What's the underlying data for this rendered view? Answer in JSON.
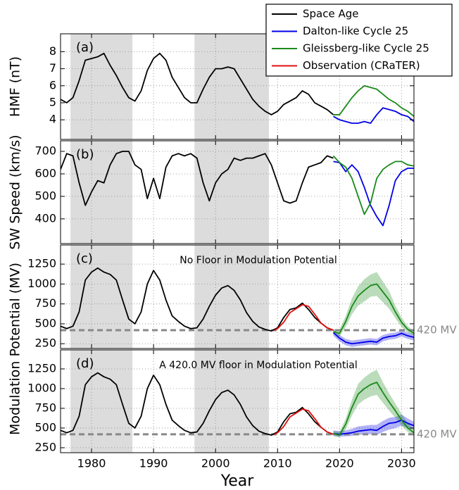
{
  "chart_data": [
    {
      "type": "line",
      "panel_label": "(a)",
      "ylabel": "HMF (nT)",
      "xlim": [
        1975,
        2032
      ],
      "xticks": [
        1980,
        1990,
        2000,
        2010,
        2020,
        2030
      ],
      "ylim": [
        2.85,
        9.05
      ],
      "yticks": [
        4,
        5,
        6,
        7,
        8
      ],
      "grid": true,
      "shaded": [
        [
          1976.6,
          1986.6
        ],
        [
          1996.6,
          2008.6
        ]
      ],
      "series": [
        {
          "name": "Space Age",
          "color": "#000000",
          "x": [
            1975,
            1976,
            1977,
            1978,
            1979,
            1980,
            1981,
            1982,
            1983,
            1984,
            1985,
            1986,
            1987,
            1988,
            1989,
            1990,
            1991,
            1992,
            1993,
            1994,
            1995,
            1996,
            1997,
            1998,
            1999,
            2000,
            2001,
            2002,
            2003,
            2004,
            2005,
            2006,
            2007,
            2008,
            2009,
            2010,
            2011,
            2012,
            2013,
            2014,
            2015,
            2016,
            2017,
            2018,
            2019
          ],
          "values": [
            5.2,
            5.0,
            5.3,
            6.3,
            7.5,
            7.6,
            7.7,
            7.9,
            7.2,
            6.6,
            5.9,
            5.3,
            5.1,
            5.7,
            6.9,
            7.6,
            7.9,
            7.5,
            6.5,
            5.9,
            5.3,
            5.0,
            5.0,
            5.8,
            6.5,
            7.0,
            7.0,
            7.1,
            7.0,
            6.4,
            5.8,
            5.2,
            4.8,
            4.5,
            4.3,
            4.5,
            4.9,
            5.1,
            5.3,
            5.7,
            5.5,
            5.0,
            4.8,
            4.6,
            4.3
          ]
        },
        {
          "name": "Dalton-like Cycle 25",
          "color": "#0000e6",
          "x": [
            2019,
            2020,
            2021,
            2022,
            2023,
            2024,
            2025,
            2026,
            2027,
            2028,
            2029,
            2030,
            2031,
            2032
          ],
          "values": [
            4.2,
            4.0,
            3.9,
            3.8,
            3.8,
            3.9,
            3.8,
            4.3,
            4.7,
            4.6,
            4.5,
            4.3,
            4.2,
            3.9
          ]
        },
        {
          "name": "Gleissberg-like Cycle 25",
          "color": "#1a8a1a",
          "x": [
            2019,
            2020,
            2021,
            2022,
            2023,
            2024,
            2025,
            2026,
            2027,
            2028,
            2029,
            2030,
            2031,
            2032
          ],
          "values": [
            4.3,
            4.3,
            4.8,
            5.3,
            5.7,
            6.0,
            5.9,
            5.8,
            5.5,
            5.2,
            5.0,
            4.7,
            4.5,
            4.2
          ]
        }
      ]
    },
    {
      "type": "line",
      "panel_label": "(b)",
      "ylabel": "SW Speed (km/s)",
      "xlim": [
        1975,
        2032
      ],
      "xticks": [
        1980,
        1990,
        2000,
        2010,
        2020,
        2030
      ],
      "ylim": [
        290,
        747
      ],
      "yticks": [
        400,
        500,
        600,
        700
      ],
      "grid": true,
      "shaded": [
        [
          1976.6,
          1986.6
        ],
        [
          1996.6,
          2008.6
        ]
      ],
      "series": [
        {
          "name": "Space Age",
          "color": "#000000",
          "x": [
            1975,
            1976,
            1977,
            1978,
            1979,
            1980,
            1981,
            1982,
            1983,
            1984,
            1985,
            1986,
            1987,
            1988,
            1989,
            1990,
            1991,
            1992,
            1993,
            1994,
            1995,
            1996,
            1997,
            1998,
            1999,
            2000,
            2001,
            2002,
            2003,
            2004,
            2005,
            2006,
            2007,
            2008,
            2009,
            2010,
            2011,
            2012,
            2013,
            2014,
            2015,
            2016,
            2017,
            2018,
            2019
          ],
          "values": [
            620,
            690,
            680,
            560,
            460,
            520,
            570,
            560,
            640,
            690,
            700,
            700,
            640,
            620,
            490,
            580,
            490,
            630,
            680,
            690,
            680,
            690,
            670,
            560,
            480,
            560,
            600,
            620,
            670,
            660,
            670,
            670,
            680,
            690,
            640,
            560,
            480,
            470,
            480,
            560,
            630,
            640,
            650,
            680,
            670
          ]
        },
        {
          "name": "Dalton-like Cycle 25",
          "color": "#0000e6",
          "x": [
            2019,
            2020,
            2021,
            2022,
            2023,
            2024,
            2025,
            2026,
            2027,
            2028,
            2029,
            2030,
            2031,
            2032
          ],
          "values": [
            655,
            650,
            610,
            640,
            610,
            540,
            460,
            410,
            370,
            460,
            570,
            610,
            625,
            625
          ]
        },
        {
          "name": "Gleissberg-like Cycle 25",
          "color": "#1a8a1a",
          "x": [
            2019,
            2020,
            2021,
            2022,
            2023,
            2024,
            2025,
            2026,
            2027,
            2028,
            2029,
            2030,
            2031,
            2032
          ],
          "values": [
            680,
            650,
            630,
            580,
            500,
            420,
            470,
            580,
            620,
            640,
            655,
            655,
            640,
            635
          ]
        }
      ]
    },
    {
      "type": "line",
      "panel_label": "(c)",
      "note": "No Floor in Modulation Potential",
      "ylabel": "Modulation Potential (MV)",
      "xlim": [
        1975,
        2032
      ],
      "xticks": [
        1980,
        1990,
        2000,
        2010,
        2020,
        2030
      ],
      "ylim": [
        190,
        1490
      ],
      "yticks": [
        250,
        500,
        750,
        1000,
        1250
      ],
      "grid": true,
      "shaded": [
        [
          1976.6,
          1986.6
        ],
        [
          1996.6,
          2008.6
        ]
      ],
      "hline": {
        "value": 420,
        "label": "420 MV",
        "color": "#888888"
      },
      "series": [
        {
          "name": "Space Age",
          "color": "#000000",
          "x": [
            1975,
            1976,
            1977,
            1978,
            1979,
            1980,
            1981,
            1982,
            1983,
            1984,
            1985,
            1986,
            1987,
            1988,
            1989,
            1990,
            1991,
            1992,
            1993,
            1994,
            1995,
            1996,
            1997,
            1998,
            1999,
            2000,
            2001,
            2002,
            2003,
            2004,
            2005,
            2006,
            2007,
            2008,
            2009,
            2010,
            2011,
            2012,
            2013,
            2014,
            2015,
            2016,
            2017,
            2018,
            2019
          ],
          "values": [
            470,
            440,
            470,
            650,
            1050,
            1150,
            1200,
            1150,
            1120,
            1050,
            800,
            560,
            500,
            650,
            1000,
            1170,
            1050,
            800,
            600,
            530,
            470,
            440,
            450,
            560,
            720,
            860,
            950,
            980,
            920,
            800,
            640,
            530,
            460,
            430,
            410,
            450,
            580,
            680,
            700,
            760,
            680,
            580,
            510,
            450,
            420
          ]
        },
        {
          "name": "Observation (CRaTER)",
          "color": "#e01010",
          "x": [
            2009.5,
            2010,
            2011,
            2012,
            2013,
            2014,
            2015,
            2016,
            2017,
            2018,
            2019
          ],
          "values": [
            420,
            440,
            520,
            640,
            690,
            740,
            720,
            620,
            510,
            450,
            420
          ]
        },
        {
          "name": "Dalton-like Cycle 25",
          "color": "#0000e6",
          "x": [
            2019,
            2020,
            2021,
            2022,
            2023,
            2024,
            2025,
            2026,
            2027,
            2028,
            2029,
            2030,
            2031,
            2032
          ],
          "values": [
            390,
            320,
            270,
            250,
            260,
            270,
            280,
            270,
            320,
            340,
            350,
            380,
            350,
            330
          ],
          "lower": [
            350,
            280,
            230,
            210,
            220,
            230,
            240,
            230,
            280,
            300,
            310,
            340,
            310,
            290
          ],
          "upper": [
            430,
            360,
            310,
            290,
            300,
            310,
            320,
            310,
            360,
            380,
            390,
            420,
            390,
            370
          ]
        },
        {
          "name": "Gleissberg-like Cycle 25",
          "color": "#1a8a1a",
          "x": [
            2019,
            2020,
            2021,
            2022,
            2023,
            2024,
            2025,
            2026,
            2027,
            2028,
            2029,
            2030,
            2031,
            2032
          ],
          "values": [
            400,
            380,
            530,
            720,
            850,
            920,
            980,
            1000,
            900,
            800,
            650,
            520,
            430,
            380
          ],
          "lower": [
            370,
            340,
            460,
            620,
            730,
            780,
            840,
            850,
            770,
            690,
            570,
            460,
            390,
            350
          ],
          "upper": [
            430,
            430,
            600,
            820,
            970,
            1060,
            1120,
            1150,
            1030,
            910,
            730,
            580,
            470,
            410
          ]
        }
      ]
    },
    {
      "type": "line",
      "panel_label": "(d)",
      "note": "A 420.0 MV floor in Modulation Potential",
      "xlabel": "Year",
      "xlim": [
        1975,
        2032
      ],
      "xticks": [
        1980,
        1990,
        2000,
        2010,
        2020,
        2030
      ],
      "ylim": [
        187,
        1491
      ],
      "yticks": [
        250,
        500,
        750,
        1000,
        1250
      ],
      "grid": true,
      "shaded": [
        [
          1976.6,
          1986.6
        ],
        [
          1996.6,
          2008.6
        ]
      ],
      "hline": {
        "value": 420,
        "label": "420 MV",
        "color": "#888888"
      },
      "series": [
        {
          "name": "Space Age",
          "color": "#000000",
          "x": [
            1975,
            1976,
            1977,
            1978,
            1979,
            1980,
            1981,
            1982,
            1983,
            1984,
            1985,
            1986,
            1987,
            1988,
            1989,
            1990,
            1991,
            1992,
            1993,
            1994,
            1995,
            1996,
            1997,
            1998,
            1999,
            2000,
            2001,
            2002,
            2003,
            2004,
            2005,
            2006,
            2007,
            2008,
            2009,
            2010,
            2011,
            2012,
            2013,
            2014,
            2015,
            2016,
            2017,
            2018,
            2019
          ],
          "values": [
            470,
            440,
            470,
            650,
            1050,
            1150,
            1200,
            1150,
            1120,
            1050,
            800,
            560,
            500,
            650,
            1000,
            1170,
            1050,
            800,
            600,
            530,
            470,
            440,
            450,
            560,
            720,
            860,
            950,
            980,
            920,
            800,
            640,
            530,
            460,
            430,
            410,
            450,
            580,
            680,
            700,
            760,
            680,
            580,
            510,
            450,
            420
          ]
        },
        {
          "name": "Observation (CRaTER)",
          "color": "#e01010",
          "x": [
            2009.5,
            2010,
            2011,
            2012,
            2013,
            2014,
            2015,
            2016,
            2017,
            2018,
            2019
          ],
          "values": [
            420,
            440,
            520,
            640,
            690,
            740,
            720,
            620,
            510,
            450,
            420
          ]
        },
        {
          "name": "Dalton-like Cycle 25",
          "color": "#0000e6",
          "x": [
            2019,
            2020,
            2021,
            2022,
            2023,
            2024,
            2025,
            2026,
            2027,
            2028,
            2029,
            2030,
            2031,
            2032
          ],
          "values": [
            430,
            420,
            430,
            440,
            460,
            470,
            480,
            470,
            520,
            560,
            570,
            600,
            560,
            530
          ],
          "lower": [
            400,
            390,
            395,
            400,
            410,
            420,
            420,
            410,
            450,
            480,
            500,
            530,
            500,
            480
          ],
          "upper": [
            470,
            460,
            470,
            490,
            520,
            530,
            540,
            540,
            590,
            630,
            640,
            670,
            620,
            580
          ]
        },
        {
          "name": "Gleissberg-like Cycle 25",
          "color": "#1a8a1a",
          "x": [
            2019,
            2020,
            2021,
            2022,
            2023,
            2024,
            2025,
            2026,
            2027,
            2028,
            2029,
            2030,
            2031,
            2032
          ],
          "values": [
            430,
            410,
            550,
            760,
            930,
            1000,
            1050,
            1080,
            950,
            830,
            720,
            600,
            500,
            440
          ],
          "lower": [
            400,
            380,
            480,
            660,
            800,
            860,
            900,
            920,
            820,
            720,
            630,
            530,
            450,
            400
          ],
          "upper": [
            460,
            450,
            620,
            860,
            1060,
            1140,
            1200,
            1240,
            1080,
            940,
            810,
            680,
            560,
            480
          ]
        }
      ]
    }
  ]
}
